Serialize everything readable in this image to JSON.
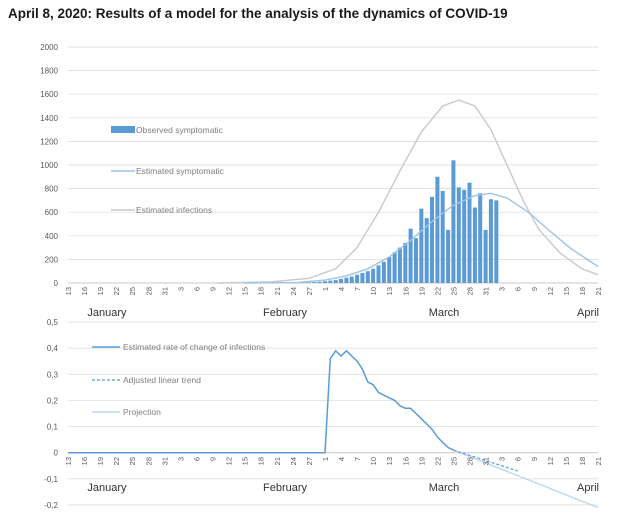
{
  "title": "April 8, 2020: Results of a model for the analysis of the dynamics of COVID-19",
  "colors": {
    "bars": "#5b9bd5",
    "estimated_symptomatic": "#9dc3e6",
    "estimated_infections": "#c9c9c9",
    "rate_line": "#5b9bd5",
    "trend_line": "#5b9bd5",
    "projection_line": "#bdd7ee",
    "grid": "#d9d9d9"
  },
  "x_tick_labels": [
    "13",
    "16",
    "19",
    "22",
    "25",
    "28",
    "31",
    "3",
    "6",
    "9",
    "12",
    "15",
    "18",
    "21",
    "24",
    "27",
    "1",
    "4",
    "7",
    "10",
    "13",
    "16",
    "19",
    "22",
    "25",
    "28",
    "31",
    "3",
    "6",
    "9",
    "12",
    "15",
    "18",
    "21"
  ],
  "months": [
    "January",
    "February",
    "March",
    "April"
  ],
  "chart_data": [
    {
      "type": "bar",
      "x_range": [
        "2020-01-13",
        "2020-04-21"
      ],
      "ylim": [
        0,
        2000
      ],
      "y_ticks": [
        0,
        200,
        400,
        600,
        800,
        1000,
        1200,
        1400,
        1600,
        1800,
        2000
      ],
      "grid": true,
      "legend_placement": "left, inside plot",
      "series": [
        {
          "name": "Observed symptomatic",
          "type": "bar",
          "start_date": "2020-02-26",
          "values": [
            3,
            5,
            8,
            10,
            15,
            20,
            25,
            35,
            45,
            55,
            70,
            85,
            100,
            120,
            150,
            180,
            220,
            260,
            300,
            340,
            460,
            380,
            630,
            550,
            730,
            900,
            780,
            450,
            1040,
            810,
            790,
            850,
            640,
            760,
            450,
            710,
            700
          ]
        },
        {
          "name": "Estimated symptomatic",
          "type": "line",
          "points": [
            [
              "2020-02-15",
              0
            ],
            [
              "2020-02-25",
              5
            ],
            [
              "2020-03-01",
              25
            ],
            [
              "2020-03-05",
              60
            ],
            [
              "2020-03-09",
              120
            ],
            [
              "2020-03-13",
              220
            ],
            [
              "2020-03-17",
              360
            ],
            [
              "2020-03-21",
              520
            ],
            [
              "2020-03-25",
              660
            ],
            [
              "2020-03-29",
              740
            ],
            [
              "2020-04-01",
              760
            ],
            [
              "2020-04-04",
              720
            ],
            [
              "2020-04-08",
              600
            ],
            [
              "2020-04-12",
              440
            ],
            [
              "2020-04-16",
              290
            ],
            [
              "2020-04-21",
              140
            ]
          ]
        },
        {
          "name": "Estimated infections",
          "type": "line",
          "points": [
            [
              "2020-02-10",
              0
            ],
            [
              "2020-02-20",
              10
            ],
            [
              "2020-02-27",
              40
            ],
            [
              "2020-03-03",
              120
            ],
            [
              "2020-03-07",
              300
            ],
            [
              "2020-03-11",
              600
            ],
            [
              "2020-03-15",
              950
            ],
            [
              "2020-03-19",
              1280
            ],
            [
              "2020-03-23",
              1500
            ],
            [
              "2020-03-26",
              1550
            ],
            [
              "2020-03-29",
              1500
            ],
            [
              "2020-04-01",
              1300
            ],
            [
              "2020-04-04",
              1000
            ],
            [
              "2020-04-07",
              700
            ],
            [
              "2020-04-10",
              450
            ],
            [
              "2020-04-14",
              250
            ],
            [
              "2020-04-18",
              120
            ],
            [
              "2020-04-21",
              70
            ]
          ]
        }
      ]
    },
    {
      "type": "line",
      "x_range": [
        "2020-01-13",
        "2020-04-21"
      ],
      "ylim": [
        -0.2,
        0.5
      ],
      "y_ticks": [
        -0.2,
        -0.1,
        0,
        0.1,
        0.2,
        0.3,
        0.4,
        0.5
      ],
      "y_tick_labels": [
        "-0,2",
        "-0,1",
        "0",
        "0,1",
        "0,2",
        "0,3",
        "0,4",
        "0,5"
      ],
      "grid": true,
      "legend_placement": "left, inside plot",
      "series": [
        {
          "name": "Estimated rate of change of infections",
          "style": "solid",
          "points": [
            [
              "2020-01-13",
              0
            ],
            [
              "2020-03-01",
              0
            ],
            [
              "2020-03-02",
              0.36
            ],
            [
              "2020-03-03",
              0.39
            ],
            [
              "2020-03-04",
              0.37
            ],
            [
              "2020-03-05",
              0.39
            ],
            [
              "2020-03-06",
              0.37
            ],
            [
              "2020-03-07",
              0.35
            ],
            [
              "2020-03-08",
              0.32
            ],
            [
              "2020-03-09",
              0.27
            ],
            [
              "2020-03-10",
              0.26
            ],
            [
              "2020-03-11",
              0.23
            ],
            [
              "2020-03-12",
              0.22
            ],
            [
              "2020-03-13",
              0.21
            ],
            [
              "2020-03-14",
              0.2
            ],
            [
              "2020-03-15",
              0.18
            ],
            [
              "2020-03-16",
              0.17
            ],
            [
              "2020-03-17",
              0.17
            ],
            [
              "2020-03-18",
              0.15
            ],
            [
              "2020-03-19",
              0.13
            ],
            [
              "2020-03-20",
              0.11
            ],
            [
              "2020-03-21",
              0.09
            ],
            [
              "2020-03-22",
              0.06
            ],
            [
              "2020-03-23",
              0.04
            ],
            [
              "2020-03-24",
              0.02
            ],
            [
              "2020-03-25",
              0.01
            ]
          ]
        },
        {
          "name": "Adjusted linear trend",
          "style": "dashed",
          "points": [
            [
              "2020-03-25",
              0.01
            ],
            [
              "2020-04-06",
              -0.07
            ]
          ]
        },
        {
          "name": "Projection",
          "style": "solid",
          "points": [
            [
              "2020-03-25",
              0.01
            ],
            [
              "2020-04-21",
              -0.21
            ]
          ]
        }
      ]
    }
  ]
}
